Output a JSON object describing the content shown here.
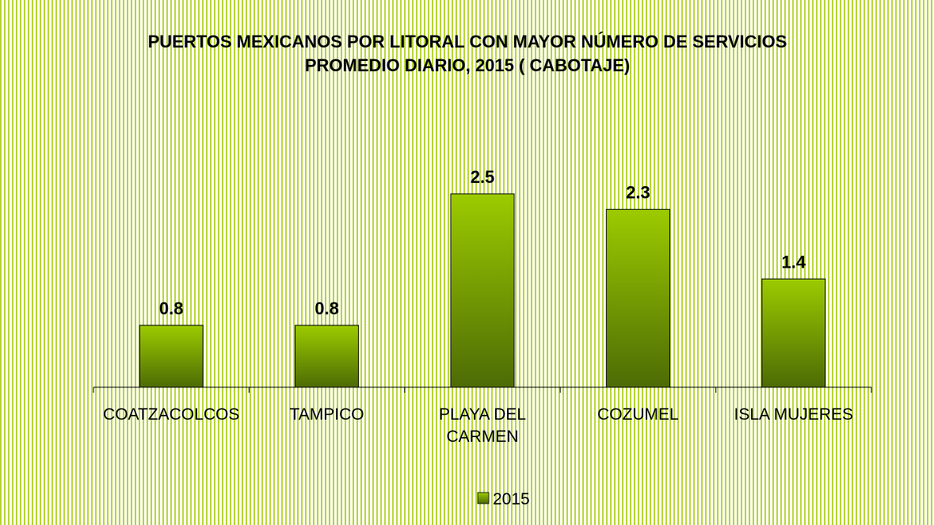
{
  "chart_data": {
    "type": "bar",
    "title": "PUERTOS MEXICANOS POR LITORAL CON MAYOR NÚMERO DE SERVICIOS PROMEDIO DIARIO, 2015 ( CABOTAJE)",
    "categories": [
      "COATZACOLCOS",
      "TAMPICO",
      "PLAYA DEL CARMEN",
      "COZUMEL",
      "ISLA MUJERES"
    ],
    "series": [
      {
        "name": "2015",
        "color": "#8db600",
        "values": [
          0.8,
          0.8,
          2.5,
          2.3,
          1.4
        ]
      }
    ],
    "ylim": [
      0,
      3
    ],
    "legend": "bottom"
  }
}
